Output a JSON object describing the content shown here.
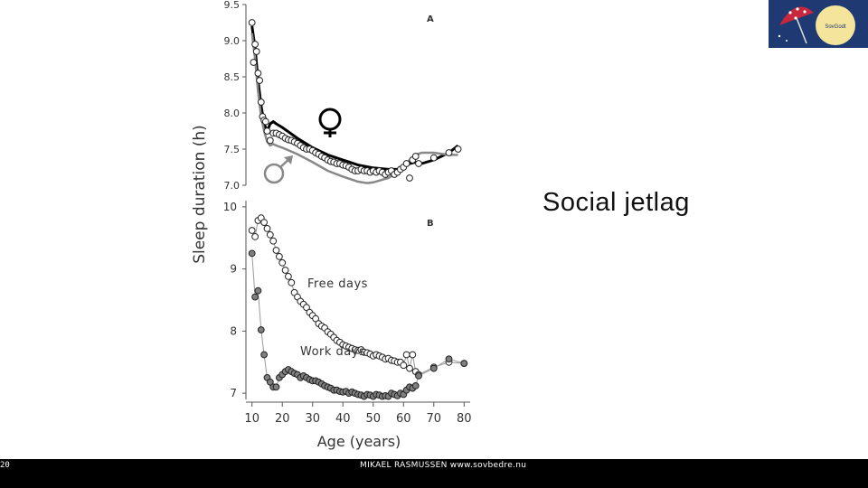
{
  "slide": {
    "title": "Social  jetlag",
    "slide_number": "20",
    "footer_text": "MIKAEL RASMUSSEN  www.sovbedre.nu",
    "logo_text": "SovGodt"
  },
  "colors": {
    "footer_bg": "#000000",
    "logo_bg": "#1f3a72",
    "logo_sun": "#f5e49b",
    "umbrella": "#c8273d"
  },
  "chart_data": [
    {
      "panel": "A",
      "type": "line",
      "ylabel": "Sleep duration (h)",
      "ylim": [
        7.0,
        9.5
      ],
      "yticks": [
        "7.0",
        "7.5",
        "8.0",
        "8.5",
        "9.0",
        "9.5"
      ],
      "xlim": [
        8,
        82
      ],
      "legend": [
        "♀",
        "♂"
      ],
      "points": {
        "x": [
          10,
          10.5,
          11,
          11.5,
          12,
          12.5,
          13,
          13.5,
          14,
          14.5,
          15,
          16,
          17,
          18,
          19,
          20,
          21,
          22,
          23,
          24,
          25,
          26,
          27,
          28,
          29,
          30,
          31,
          32,
          33,
          34,
          35,
          36,
          37,
          38,
          39,
          40,
          41,
          42,
          43,
          44,
          45,
          46,
          47,
          48,
          49,
          50,
          51,
          52,
          53,
          54,
          55,
          56,
          57,
          58,
          59,
          60,
          61,
          62,
          63,
          64,
          65,
          70,
          75,
          78
        ],
        "y": [
          9.25,
          8.7,
          8.95,
          8.85,
          8.55,
          8.45,
          8.15,
          7.95,
          7.9,
          7.88,
          7.75,
          7.62,
          7.72,
          7.72,
          7.7,
          7.68,
          7.65,
          7.63,
          7.62,
          7.6,
          7.58,
          7.55,
          7.52,
          7.5,
          7.5,
          7.48,
          7.45,
          7.43,
          7.4,
          7.38,
          7.35,
          7.33,
          7.32,
          7.3,
          7.3,
          7.28,
          7.27,
          7.25,
          7.22,
          7.2,
          7.2,
          7.22,
          7.2,
          7.2,
          7.18,
          7.2,
          7.18,
          7.2,
          7.18,
          7.15,
          7.18,
          7.2,
          7.15,
          7.18,
          7.22,
          7.25,
          7.3,
          7.1,
          7.35,
          7.4,
          7.3,
          7.38,
          7.45,
          7.5
        ]
      },
      "series": [
        {
          "name": "♀",
          "color": "#000000",
          "x": [
            10,
            11,
            12,
            13,
            14,
            15,
            16,
            17,
            18,
            20,
            25,
            30,
            35,
            40,
            45,
            50,
            55,
            58,
            60,
            62,
            64,
            66,
            70,
            75,
            78
          ],
          "y": [
            9.2,
            8.9,
            8.45,
            8.1,
            7.85,
            7.75,
            7.85,
            7.88,
            7.85,
            7.8,
            7.65,
            7.52,
            7.42,
            7.35,
            7.28,
            7.24,
            7.22,
            7.22,
            7.25,
            7.3,
            7.32,
            7.3,
            7.35,
            7.45,
            7.55
          ]
        },
        {
          "name": "♂",
          "color": "#888888",
          "x": [
            10,
            11,
            12,
            13,
            14,
            15,
            16,
            17,
            18,
            20,
            25,
            30,
            35,
            40,
            45,
            48,
            50,
            55,
            58,
            60,
            62,
            64,
            66,
            70,
            75,
            78
          ],
          "y": [
            9.1,
            8.75,
            8.3,
            7.95,
            7.75,
            7.6,
            7.55,
            7.57,
            7.55,
            7.52,
            7.43,
            7.32,
            7.2,
            7.12,
            7.05,
            7.03,
            7.04,
            7.1,
            7.18,
            7.22,
            7.35,
            7.42,
            7.45,
            7.45,
            7.42,
            7.42
          ]
        }
      ]
    },
    {
      "panel": "B",
      "type": "line",
      "xlabel": "Age (years)",
      "ylabel": "Sleep duration (h)",
      "xlim": [
        8,
        82
      ],
      "ylim": [
        6.9,
        10.1
      ],
      "xticks": [
        10,
        20,
        30,
        40,
        50,
        60,
        70,
        80
      ],
      "yticks": [
        "7",
        "8",
        "9",
        "10"
      ],
      "series": [
        {
          "name": "Free days",
          "color": "#ffffff",
          "x": [
            10,
            11,
            12,
            13,
            14,
            15,
            16,
            17,
            18,
            19,
            20,
            21,
            22,
            23,
            24,
            25,
            26,
            27,
            28,
            29,
            30,
            31,
            32,
            33,
            34,
            35,
            36,
            37,
            38,
            39,
            40,
            41,
            42,
            43,
            44,
            45,
            46,
            47,
            48,
            49,
            50,
            51,
            52,
            53,
            54,
            55,
            56,
            57,
            58,
            59,
            60,
            61,
            62,
            63,
            64,
            65,
            70,
            75,
            80
          ],
          "y": [
            9.62,
            9.52,
            9.78,
            9.82,
            9.75,
            9.65,
            9.55,
            9.45,
            9.3,
            9.2,
            9.1,
            8.98,
            8.88,
            8.78,
            8.62,
            8.55,
            8.48,
            8.43,
            8.38,
            8.3,
            8.25,
            8.2,
            8.12,
            8.08,
            8.05,
            7.99,
            7.95,
            7.9,
            7.85,
            7.82,
            7.78,
            7.76,
            7.74,
            7.72,
            7.7,
            7.69,
            7.7,
            7.66,
            7.65,
            7.63,
            7.6,
            7.62,
            7.6,
            7.58,
            7.55,
            7.56,
            7.53,
            7.52,
            7.5,
            7.5,
            7.45,
            7.62,
            7.4,
            7.62,
            7.35,
            7.3,
            7.42,
            7.5,
            7.48
          ]
        },
        {
          "name": "Work days",
          "color": "#808080",
          "x": [
            10,
            11,
            12,
            13,
            14,
            15,
            16,
            17,
            18,
            19,
            20,
            21,
            22,
            23,
            24,
            25,
            26,
            27,
            28,
            29,
            30,
            31,
            32,
            33,
            34,
            35,
            36,
            37,
            38,
            39,
            40,
            41,
            42,
            43,
            44,
            45,
            46,
            47,
            48,
            49,
            50,
            51,
            52,
            53,
            54,
            55,
            56,
            57,
            58,
            59,
            60,
            61,
            62,
            63,
            64,
            65,
            70,
            75,
            80
          ],
          "y": [
            9.25,
            8.55,
            8.65,
            8.02,
            7.62,
            7.25,
            7.18,
            7.1,
            7.1,
            7.25,
            7.3,
            7.35,
            7.38,
            7.35,
            7.32,
            7.3,
            7.25,
            7.28,
            7.25,
            7.22,
            7.2,
            7.2,
            7.18,
            7.15,
            7.12,
            7.1,
            7.08,
            7.05,
            7.05,
            7.03,
            7.02,
            7.03,
            7.0,
            7.02,
            7.0,
            6.98,
            6.97,
            6.95,
            6.98,
            6.97,
            6.95,
            6.98,
            6.97,
            6.95,
            6.96,
            6.95,
            7.0,
            6.98,
            6.96,
            7.0,
            6.98,
            7.05,
            7.1,
            7.08,
            7.12,
            7.28,
            7.4,
            7.55,
            7.48
          ]
        }
      ]
    }
  ]
}
